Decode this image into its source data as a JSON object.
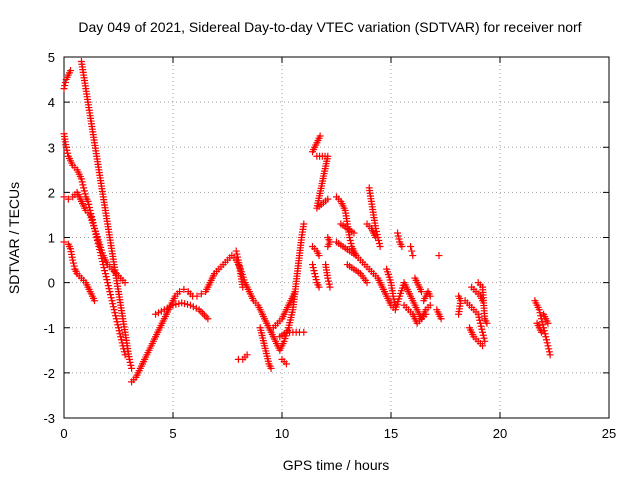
{
  "chart_data": {
    "type": "scatter",
    "title": "Day 049 of 2021, Sidereal Day-to-day VTEC variation (SDTVAR) for receiver norf",
    "xlabel": "GPS time / hours",
    "ylabel": "SDTVAR / TECUs",
    "xlim": [
      0,
      25
    ],
    "ylim": [
      -3,
      5
    ],
    "xticks": [
      "0",
      "5",
      "10",
      "15",
      "20",
      "25"
    ],
    "yticks": [
      "-3",
      "-2",
      "-1",
      "0",
      "1",
      "2",
      "3",
      "4",
      "5"
    ],
    "grid": true,
    "marker": "+",
    "color": "#ff0000",
    "segments": [
      [
        [
          0.0,
          4.3
        ],
        [
          0.1,
          4.5
        ],
        [
          0.2,
          4.6
        ],
        [
          0.3,
          4.7
        ]
      ],
      [
        [
          0.0,
          3.3
        ],
        [
          0.1,
          3.0
        ],
        [
          0.2,
          2.8
        ],
        [
          0.3,
          2.7
        ],
        [
          0.4,
          2.6
        ],
        [
          0.5,
          2.55
        ],
        [
          0.6,
          2.5
        ],
        [
          0.7,
          2.4
        ],
        [
          0.8,
          2.3
        ],
        [
          0.9,
          2.1
        ],
        [
          1.0,
          1.9
        ],
        [
          1.1,
          1.8
        ],
        [
          1.2,
          1.6
        ],
        [
          1.3,
          1.4
        ],
        [
          1.4,
          1.2
        ],
        [
          1.5,
          1.0
        ],
        [
          1.6,
          0.8
        ],
        [
          1.7,
          0.6
        ],
        [
          1.8,
          0.4
        ],
        [
          1.9,
          0.2
        ],
        [
          2.0,
          0.0
        ],
        [
          2.1,
          -0.2
        ],
        [
          2.2,
          -0.4
        ],
        [
          2.3,
          -0.6
        ],
        [
          2.4,
          -0.8
        ],
        [
          2.5,
          -1.0
        ],
        [
          2.6,
          -1.2
        ],
        [
          2.7,
          -1.4
        ],
        [
          2.8,
          -1.6
        ]
      ],
      [
        [
          0.0,
          1.9
        ],
        [
          0.2,
          1.85
        ],
        [
          0.4,
          1.9
        ],
        [
          0.6,
          2.0
        ],
        [
          0.8,
          1.8
        ],
        [
          1.0,
          1.6
        ],
        [
          1.2,
          1.5
        ],
        [
          1.4,
          1.2
        ],
        [
          1.6,
          0.9
        ],
        [
          1.8,
          0.6
        ],
        [
          2.0,
          0.4
        ],
        [
          2.2,
          0.3
        ],
        [
          2.4,
          0.2
        ],
        [
          2.6,
          0.1
        ],
        [
          2.8,
          0.0
        ]
      ],
      [
        [
          0.0,
          0.9
        ],
        [
          0.2,
          0.85
        ],
        [
          0.3,
          0.75
        ],
        [
          0.4,
          0.5
        ],
        [
          0.5,
          0.3
        ],
        [
          0.6,
          0.2
        ],
        [
          0.8,
          0.1
        ],
        [
          1.0,
          0.0
        ],
        [
          1.2,
          -0.2
        ],
        [
          1.4,
          -0.4
        ]
      ],
      [
        [
          0.8,
          4.9
        ],
        [
          0.9,
          4.6
        ],
        [
          1.0,
          4.3
        ],
        [
          1.1,
          4.0
        ],
        [
          1.2,
          3.7
        ],
        [
          1.3,
          3.4
        ],
        [
          1.4,
          3.1
        ],
        [
          1.5,
          2.8
        ],
        [
          1.6,
          2.5
        ],
        [
          1.7,
          2.2
        ],
        [
          1.8,
          1.9
        ],
        [
          1.9,
          1.6
        ],
        [
          2.0,
          1.3
        ],
        [
          2.1,
          1.0
        ],
        [
          2.2,
          0.7
        ],
        [
          2.3,
          0.4
        ],
        [
          2.4,
          0.1
        ],
        [
          2.5,
          -0.2
        ],
        [
          2.6,
          -0.5
        ],
        [
          2.7,
          -0.8
        ],
        [
          2.8,
          -1.1
        ],
        [
          2.9,
          -1.4
        ],
        [
          3.0,
          -1.7
        ],
        [
          3.1,
          -1.9
        ]
      ],
      [
        [
          0.5,
          0.3
        ],
        [
          0.6,
          0.2
        ]
      ],
      [
        [
          3.1,
          -2.2
        ],
        [
          3.3,
          -2.1
        ],
        [
          3.5,
          -1.9
        ],
        [
          3.7,
          -1.7
        ],
        [
          3.9,
          -1.5
        ],
        [
          4.1,
          -1.3
        ],
        [
          4.3,
          -1.1
        ],
        [
          4.5,
          -0.9
        ],
        [
          4.7,
          -0.7
        ],
        [
          4.9,
          -0.5
        ],
        [
          5.1,
          -0.3
        ],
        [
          5.3,
          -0.2
        ],
        [
          5.5,
          -0.15
        ],
        [
          5.7,
          -0.2
        ],
        [
          5.9,
          -0.3
        ],
        [
          6.1,
          -0.3
        ],
        [
          6.3,
          -0.25
        ],
        [
          6.5,
          -0.2
        ],
        [
          6.7,
          0.0
        ],
        [
          6.9,
          0.2
        ],
        [
          7.1,
          0.3
        ],
        [
          7.3,
          0.4
        ],
        [
          7.5,
          0.5
        ],
        [
          7.7,
          0.6
        ],
        [
          7.9,
          0.5
        ],
        [
          8.1,
          0.3
        ],
        [
          8.3,
          0.0
        ],
        [
          8.5,
          -0.2
        ],
        [
          8.7,
          -0.4
        ],
        [
          8.9,
          -0.5
        ],
        [
          9.1,
          -0.7
        ],
        [
          9.3,
          -0.9
        ],
        [
          9.5,
          -1.1
        ],
        [
          9.7,
          -1.3
        ],
        [
          9.9,
          -1.5
        ],
        [
          10.1,
          -1.3
        ],
        [
          10.3,
          -1.0
        ],
        [
          10.5,
          -0.6
        ],
        [
          10.6,
          -0.2
        ],
        [
          10.7,
          0.2
        ],
        [
          10.8,
          0.6
        ],
        [
          10.9,
          1.0
        ],
        [
          11.0,
          1.3
        ]
      ],
      [
        [
          4.2,
          -0.7
        ],
        [
          4.6,
          -0.6
        ],
        [
          5.0,
          -0.5
        ],
        [
          5.4,
          -0.45
        ],
        [
          5.8,
          -0.5
        ],
        [
          6.2,
          -0.6
        ],
        [
          6.6,
          -0.8
        ]
      ],
      [
        [
          7.9,
          0.7
        ],
        [
          8.0,
          0.5
        ],
        [
          8.1,
          0.2
        ],
        [
          8.2,
          -0.1
        ]
      ],
      [
        [
          8.0,
          -1.7
        ],
        [
          8.2,
          -1.7
        ],
        [
          8.4,
          -1.6
        ]
      ],
      [
        [
          9.0,
          -1.0
        ],
        [
          9.2,
          -1.4
        ],
        [
          9.4,
          -1.8
        ],
        [
          9.5,
          -1.9
        ]
      ],
      [
        [
          9.6,
          -1.0
        ],
        [
          9.8,
          -0.9
        ],
        [
          10.0,
          -0.8
        ],
        [
          10.2,
          -0.6
        ],
        [
          10.4,
          -0.4
        ],
        [
          10.6,
          -0.2
        ]
      ],
      [
        [
          9.9,
          -1.2
        ],
        [
          10.2,
          -1.1
        ],
        [
          10.5,
          -1.1
        ],
        [
          10.8,
          -1.1
        ],
        [
          11.0,
          -1.1
        ]
      ],
      [
        [
          10.0,
          -1.7
        ],
        [
          10.2,
          -1.8
        ]
      ],
      [
        [
          11.4,
          2.9
        ],
        [
          11.5,
          3.0
        ],
        [
          11.6,
          3.1
        ],
        [
          11.7,
          3.2
        ],
        [
          11.75,
          3.25
        ]
      ],
      [
        [
          11.6,
          2.8
        ],
        [
          12.1,
          2.8
        ],
        [
          11.6,
          1.65
        ],
        [
          12.1,
          1.85
        ]
      ],
      [
        [
          11.4,
          0.8
        ],
        [
          11.6,
          0.7
        ],
        [
          11.7,
          0.6
        ]
      ],
      [
        [
          11.4,
          0.4
        ],
        [
          11.5,
          0.2
        ],
        [
          11.6,
          0.0
        ],
        [
          11.7,
          -0.1
        ]
      ],
      [
        [
          12.0,
          0.4
        ],
        [
          12.1,
          0.1
        ],
        [
          12.2,
          -0.1
        ]
      ],
      [
        [
          12.1,
          1.0
        ],
        [
          12.2,
          0.9
        ],
        [
          12.1,
          0.8
        ]
      ],
      [
        [
          12.5,
          1.9
        ],
        [
          12.7,
          1.8
        ],
        [
          12.9,
          1.6
        ],
        [
          13.0,
          1.3
        ],
        [
          13.1,
          1.0
        ],
        [
          13.2,
          0.8
        ],
        [
          13.4,
          0.6
        ],
        [
          13.6,
          0.5
        ],
        [
          13.8,
          0.4
        ],
        [
          14.0,
          0.3
        ],
        [
          14.2,
          0.2
        ],
        [
          14.4,
          0.1
        ],
        [
          14.6,
          -0.1
        ],
        [
          14.8,
          -0.3
        ],
        [
          15.0,
          -0.5
        ],
        [
          15.2,
          -0.6
        ],
        [
          15.4,
          -0.3
        ],
        [
          15.6,
          0.0
        ],
        [
          15.8,
          -0.2
        ],
        [
          16.0,
          -0.4
        ],
        [
          16.2,
          -0.6
        ],
        [
          16.4,
          -0.8
        ],
        [
          16.6,
          -0.7
        ]
      ],
      [
        [
          12.7,
          1.3
        ],
        [
          13.0,
          1.2
        ],
        [
          13.3,
          1.1
        ]
      ],
      [
        [
          12.5,
          0.9
        ],
        [
          12.8,
          0.8
        ],
        [
          13.1,
          0.7
        ],
        [
          13.4,
          0.6
        ]
      ],
      [
        [
          13.0,
          0.4
        ],
        [
          13.3,
          0.3
        ],
        [
          13.6,
          0.2
        ],
        [
          13.9,
          0.0
        ]
      ],
      [
        [
          14.0,
          2.1
        ],
        [
          14.1,
          1.8
        ],
        [
          14.2,
          1.5
        ],
        [
          14.3,
          1.2
        ],
        [
          14.4,
          1.0
        ],
        [
          14.5,
          0.8
        ]
      ],
      [
        [
          13.9,
          1.3
        ],
        [
          14.1,
          1.2
        ],
        [
          14.3,
          1.0
        ]
      ],
      [
        [
          14.8,
          0.3
        ],
        [
          15.0,
          0.0
        ],
        [
          15.1,
          -0.3
        ],
        [
          15.2,
          -0.5
        ]
      ],
      [
        [
          15.3,
          1.1
        ],
        [
          15.4,
          0.9
        ],
        [
          15.5,
          0.8
        ]
      ],
      [
        [
          15.6,
          -0.5
        ],
        [
          15.8,
          -0.6
        ],
        [
          16.0,
          -0.7
        ],
        [
          16.2,
          -0.9
        ],
        [
          16.4,
          -0.8
        ],
        [
          16.6,
          -0.6
        ],
        [
          16.8,
          -0.5
        ]
      ],
      [
        [
          15.9,
          0.8
        ],
        [
          15.95,
          0.7
        ],
        [
          16.0,
          0.6
        ]
      ],
      [
        [
          16.1,
          0.1
        ],
        [
          16.2,
          0.0
        ],
        [
          16.3,
          -0.1
        ],
        [
          16.4,
          -0.2
        ]
      ],
      [
        [
          16.5,
          -0.4
        ],
        [
          16.6,
          -0.3
        ],
        [
          16.7,
          -0.2
        ],
        [
          16.8,
          -0.3
        ]
      ],
      [
        [
          17.2,
          0.6
        ]
      ],
      [
        [
          17.1,
          -0.6
        ],
        [
          17.2,
          -0.7
        ],
        [
          17.3,
          -0.8
        ]
      ],
      [
        [
          18.1,
          -0.3
        ],
        [
          18.2,
          -0.4
        ],
        [
          18.1,
          -0.7
        ]
      ],
      [
        [
          18.4,
          -0.4
        ],
        [
          18.6,
          -0.5
        ],
        [
          18.8,
          -0.6
        ],
        [
          19.0,
          -0.7
        ],
        [
          19.1,
          -0.9
        ],
        [
          19.2,
          -1.1
        ],
        [
          19.3,
          -1.3
        ]
      ],
      [
        [
          18.7,
          -0.1
        ],
        [
          18.9,
          -0.2
        ],
        [
          19.1,
          -0.3
        ],
        [
          19.2,
          -0.4
        ]
      ],
      [
        [
          18.6,
          -1.0
        ],
        [
          18.8,
          -1.2
        ],
        [
          19.0,
          -1.3
        ],
        [
          19.2,
          -1.4
        ]
      ],
      [
        [
          19.0,
          0.0
        ],
        [
          19.2,
          -0.1
        ],
        [
          19.3,
          -0.8
        ],
        [
          19.4,
          -0.9
        ]
      ],
      [
        [
          21.6,
          -0.4
        ],
        [
          21.7,
          -0.5
        ],
        [
          21.8,
          -0.6
        ],
        [
          21.9,
          -0.8
        ],
        [
          22.0,
          -1.0
        ],
        [
          22.1,
          -1.2
        ],
        [
          22.2,
          -1.4
        ],
        [
          22.3,
          -1.6
        ]
      ],
      [
        [
          21.7,
          -0.9
        ],
        [
          21.8,
          -1.0
        ],
        [
          21.9,
          -1.1
        ]
      ],
      [
        [
          22.0,
          -0.7
        ],
        [
          22.1,
          -0.8
        ],
        [
          22.2,
          -0.9
        ]
      ]
    ]
  }
}
